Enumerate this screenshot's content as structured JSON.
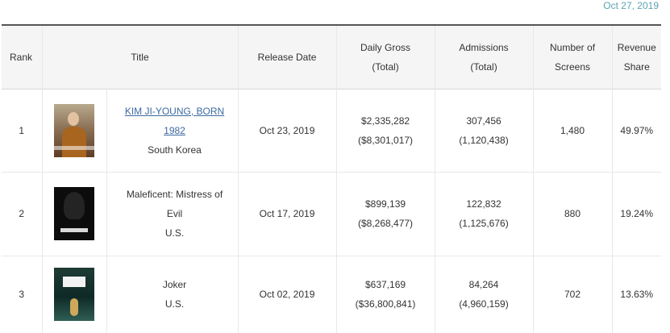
{
  "header": {
    "date": "Oct 27, 2019"
  },
  "columns": {
    "rank": "Rank",
    "title": "Title",
    "release_date": "Release Date",
    "daily_gross_1": "Daily Gross",
    "daily_gross_2": "(Total)",
    "admissions_1": "Admissions",
    "admissions_2": "(Total)",
    "screens_1": "Number of",
    "screens_2": "Screens",
    "share_1": "Revenue",
    "share_2": "Share"
  },
  "rows": [
    {
      "rank": "1",
      "poster_icon": "movie-poster-kim-ji-young",
      "title_line1": "KIM JI-YOUNG, BORN",
      "title_line2": "1982",
      "country": "South Korea",
      "release_date": "Oct 23, 2019",
      "daily_gross": "$2,335,282",
      "total_gross": "($8,301,017)",
      "admissions": "307,456",
      "total_admissions": "(1,120,438)",
      "screens": "1,480",
      "share": "49.97%"
    },
    {
      "rank": "2",
      "poster_icon": "movie-poster-maleficent",
      "title_line1": "Maleficent: Mistress of",
      "title_line2": "Evil",
      "country": "U.S.",
      "release_date": "Oct 17, 2019",
      "daily_gross": "$899,139",
      "total_gross": "($8,268,477)",
      "admissions": "122,832",
      "total_admissions": "(1,125,676)",
      "screens": "880",
      "share": "19.24%"
    },
    {
      "rank": "3",
      "poster_icon": "movie-poster-joker",
      "title_line1": "Joker",
      "country": "U.S.",
      "release_date": "Oct 02, 2019",
      "daily_gross": "$637,169",
      "total_gross": "($36,800,841)",
      "admissions": "84,264",
      "total_admissions": "(4,960,159)",
      "screens": "702",
      "share": "13.63%"
    }
  ]
}
